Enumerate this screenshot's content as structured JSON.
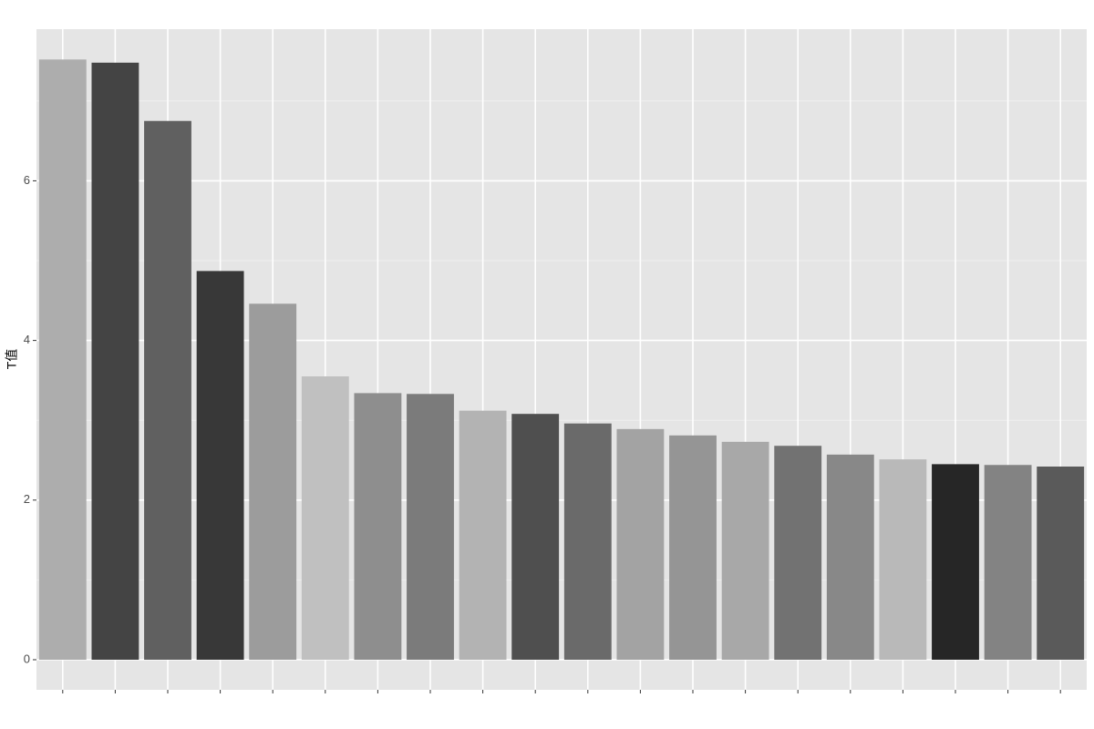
{
  "chart_data": {
    "type": "bar",
    "y_label": "T值",
    "categories": [
      null,
      null,
      null,
      null,
      null,
      null,
      null,
      null,
      null,
      null,
      null,
      null,
      null,
      null,
      null,
      null,
      null,
      null,
      null,
      null
    ],
    "values": [
      7.52,
      7.48,
      6.75,
      4.87,
      4.46,
      3.55,
      3.34,
      3.33,
      3.12,
      3.08,
      2.96,
      2.89,
      2.81,
      2.73,
      2.68,
      2.57,
      2.51,
      2.45,
      2.44,
      2.42
    ],
    "colors": [
      "#adadad",
      "#444444",
      "#606060",
      "#383838",
      "#9c9c9c",
      "#c0c0c0",
      "#8e8e8e",
      "#7b7b7b",
      "#b3b3b3",
      "#4f4f4f",
      "#6a6a6a",
      "#a3a3a3",
      "#959595",
      "#a8a8a8",
      "#727272",
      "#888888",
      "#b9b9b9",
      "#262626",
      "#838383",
      "#5a5a5a"
    ],
    "ylim": [
      -0.377,
      7.9
    ],
    "yticks": [
      0,
      2,
      4,
      6
    ],
    "grid": true
  }
}
